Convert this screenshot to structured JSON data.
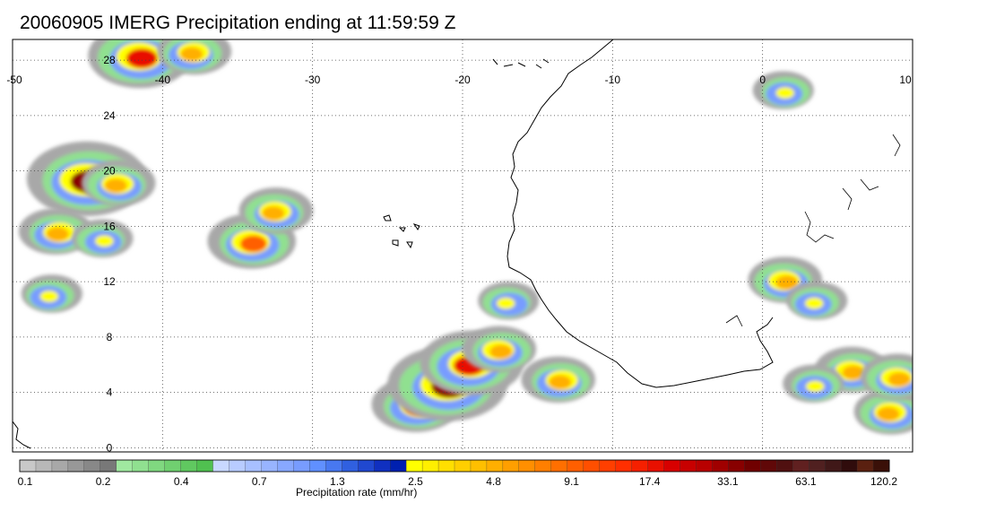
{
  "title": "20060905 IMERG Precipitation ending at 11:59:59 Z",
  "map": {
    "lon_range": [
      -50,
      10
    ],
    "lat_range": [
      -0.3,
      29.5
    ],
    "lon_labels": [
      "-50",
      "-40",
      "-30",
      "-20",
      "-10",
      "0",
      "10"
    ],
    "lon_values": [
      -50,
      -40,
      -30,
      -20,
      -10,
      0,
      10
    ],
    "lat_labels": [
      "28",
      "24",
      "20",
      "16",
      "12",
      "8",
      "4",
      "0"
    ],
    "lat_values": [
      28,
      24,
      20,
      16,
      12,
      8,
      4,
      0
    ],
    "grid": "dotted"
  },
  "colorbar": {
    "title": "Precipitation rate (mm/hr)",
    "tick_labels": [
      "0.1",
      "0.2",
      "0.4",
      "0.7",
      "1.3",
      "2.5",
      "4.8",
      "9.1",
      "17.4",
      "33.1",
      "63.1",
      "120.2"
    ],
    "colors": [
      "#c8c8c8",
      "#b8b8b8",
      "#a8a8a8",
      "#989898",
      "#888888",
      "#787878",
      "#a0e8a0",
      "#90e090",
      "#80d880",
      "#70d070",
      "#60c860",
      "#50c050",
      "#c8d8ff",
      "#b8ccff",
      "#a8c0ff",
      "#98b4ff",
      "#88a8ff",
      "#789cff",
      "#6090ff",
      "#4878f0",
      "#3060e0",
      "#2048d0",
      "#1030c0",
      "#0020b0",
      "#ffff00",
      "#ffef00",
      "#ffdf00",
      "#ffcf00",
      "#ffbf00",
      "#ffaf00",
      "#ff9f00",
      "#ff8f00",
      "#ff7f00",
      "#ff6f00",
      "#ff5f00",
      "#ff4f00",
      "#ff3f00",
      "#ff2f00",
      "#f52000",
      "#e81000",
      "#d80000",
      "#c80000",
      "#b80000",
      "#a00000",
      "#880000",
      "#700000",
      "#600808",
      "#501010",
      "#602020",
      "#502020",
      "#401818",
      "#300c0c",
      "#5a2010",
      "#3a1008"
    ]
  },
  "precip_cells": [
    {
      "lon": -23.0,
      "lat": 3.0,
      "rate": 9.1
    },
    {
      "lon": -21.0,
      "lat": 4.5,
      "rate": 33.1
    },
    {
      "lon": -19.5,
      "lat": 6.0,
      "rate": 17.4
    },
    {
      "lon": -17.5,
      "lat": 7.0,
      "rate": 4.8
    },
    {
      "lon": -17.0,
      "lat": 10.5,
      "rate": 2.5
    },
    {
      "lon": -13.5,
      "lat": 4.8,
      "rate": 4.8
    },
    {
      "lon": -41.5,
      "lat": 28.2,
      "rate": 17.4
    },
    {
      "lon": -38.0,
      "lat": 28.5,
      "rate": 4.8
    },
    {
      "lon": -45.0,
      "lat": 19.3,
      "rate": 33.1
    },
    {
      "lon": -43.0,
      "lat": 19.0,
      "rate": 4.8
    },
    {
      "lon": -47.0,
      "lat": 15.5,
      "rate": 4.8
    },
    {
      "lon": -44.0,
      "lat": 15.0,
      "rate": 2.5
    },
    {
      "lon": -47.5,
      "lat": 11.0,
      "rate": 2.5
    },
    {
      "lon": -34.0,
      "lat": 14.8,
      "rate": 9.1
    },
    {
      "lon": -32.5,
      "lat": 17.0,
      "rate": 4.8
    },
    {
      "lon": 1.5,
      "lat": 25.7,
      "rate": 2.5
    },
    {
      "lon": 1.5,
      "lat": 12.0,
      "rate": 4.8
    },
    {
      "lon": 3.5,
      "lat": 10.5,
      "rate": 2.5
    },
    {
      "lon": 6.0,
      "lat": 5.5,
      "rate": 4.8
    },
    {
      "lon": 8.5,
      "lat": 2.5,
      "rate": 4.8
    },
    {
      "lon": 3.5,
      "lat": 4.5,
      "rate": 2.5
    },
    {
      "lon": 9.0,
      "lat": 5.0,
      "rate": 4.8
    }
  ]
}
